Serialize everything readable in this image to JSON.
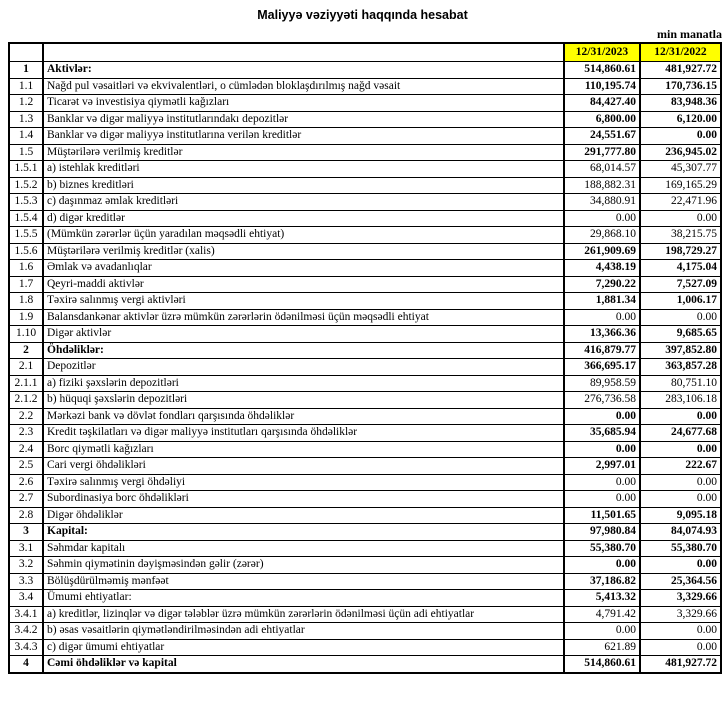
{
  "title": "Maliyyə vəziyyəti haqqında hesabat",
  "unit_note": "min manatla",
  "colors": {
    "header_bg": "#FFFF00",
    "border": "#000000",
    "text": "#000000"
  },
  "table": {
    "header": {
      "col_2023": "12/31/2023",
      "col_2022": "12/31/2022"
    },
    "rows": [
      {
        "num": "1",
        "label": "Aktivlər:",
        "v2023": "514,860.61",
        "v2022": "481,927.72",
        "style": "section"
      },
      {
        "num": "1.1",
        "label": "Nağd pul vəsaitləri və  ekvivalentləri, o cümlədən bloklaşdırılmış nağd vəsait",
        "v2023": "110,195.74",
        "v2022": "170,736.15",
        "style": "bold"
      },
      {
        "num": "1.2",
        "label": "Ticarət və investisiya qiymətli kağızları",
        "v2023": "84,427.40",
        "v2022": "83,948.36",
        "style": "bold"
      },
      {
        "num": "1.3",
        "label": "Banklar və digər maliyyə institutlarındakı depozitlər",
        "v2023": "6,800.00",
        "v2022": "6,120.00",
        "style": "bold"
      },
      {
        "num": "1.4",
        "label": "Banklar və digər maliyyə institutlarına verilən kreditlər",
        "v2023": "24,551.67",
        "v2022": "0.00",
        "style": "bold"
      },
      {
        "num": "1.5",
        "label": "Müştərilərə verilmiş kreditlər",
        "v2023": "291,777.80",
        "v2022": "236,945.02",
        "style": "bold"
      },
      {
        "num": "1.5.1",
        "label": "a) istehlak kreditləri",
        "v2023": "68,014.57",
        "v2022": "45,307.77",
        "style": "regular"
      },
      {
        "num": "1.5.2",
        "label": "b) biznes kreditləri",
        "v2023": "188,882.31",
        "v2022": "169,165.29",
        "style": "regular"
      },
      {
        "num": "1.5.3",
        "label": "c) daşınmaz əmlak kreditləri",
        "v2023": "34,880.91",
        "v2022": "22,471.96",
        "style": "regular"
      },
      {
        "num": "1.5.4",
        "label": "d) digər kreditlər",
        "v2023": "0.00",
        "v2022": "0.00",
        "style": "regular"
      },
      {
        "num": "1.5.5",
        "label": "(Mümkün zərərlər üçün yaradılan məqsədli ehtiyat)",
        "v2023": "29,868.10",
        "v2022": "38,215.75",
        "style": "regular"
      },
      {
        "num": "1.5.6",
        "label": "Müştərilərə verilmiş kreditlər (xalis)",
        "v2023": "261,909.69",
        "v2022": "198,729.27",
        "style": "bold"
      },
      {
        "num": "1.6",
        "label": "Əmlak və avadanlıqlar",
        "v2023": "4,438.19",
        "v2022": "4,175.04",
        "style": "bold"
      },
      {
        "num": "1.7",
        "label": "Qeyri-maddi aktivlər",
        "v2023": "7,290.22",
        "v2022": "7,527.09",
        "style": "bold"
      },
      {
        "num": "1.8",
        "label": "Təxirə salınmış vergi aktivləri",
        "v2023": "1,881.34",
        "v2022": "1,006.17",
        "style": "bold"
      },
      {
        "num": "1.9",
        "label": "Balansdankənar aktivlər üzrə mümkün zərərlərin ödənilməsi üçün məqsədli ehtiyat",
        "v2023": "0.00",
        "v2022": "0.00",
        "style": "regular"
      },
      {
        "num": "1.10",
        "label": "Digər aktivlər",
        "v2023": "13,366.36",
        "v2022": "9,685.65",
        "style": "bold"
      },
      {
        "num": "2",
        "label": "Öhdəliklər:",
        "v2023": "416,879.77",
        "v2022": "397,852.80",
        "style": "section"
      },
      {
        "num": "2.1",
        "label": "Depozitlər",
        "v2023": "366,695.17",
        "v2022": "363,857.28",
        "style": "bold"
      },
      {
        "num": "2.1.1",
        "label": "a) fiziki şəxslərin depozitləri",
        "v2023": "89,958.59",
        "v2022": "80,751.10",
        "style": "regular"
      },
      {
        "num": "2.1.2",
        "label": "b) hüquqi şəxslərin depozitləri",
        "v2023": "276,736.58",
        "v2022": "283,106.18",
        "style": "regular"
      },
      {
        "num": "2.2",
        "label": "Mərkəzi bank və dövlət fondları qarşısında öhdəliklər",
        "v2023": "0.00",
        "v2022": "0.00",
        "style": "bold"
      },
      {
        "num": "2.3",
        "label": "Kredit təşkilatları və digər maliyyə institutları qarşısında öhdəliklər",
        "v2023": "35,685.94",
        "v2022": "24,677.68",
        "style": "bold"
      },
      {
        "num": "2.4",
        "label": "Borc qiymətli kağızları",
        "v2023": "0.00",
        "v2022": "0.00",
        "style": "bold"
      },
      {
        "num": "2.5",
        "label": "Cari vergi öhdəlikləri",
        "v2023": "2,997.01",
        "v2022": "222.67",
        "style": "bold"
      },
      {
        "num": "2.6",
        "label": "Təxirə salınmış vergi öhdəliyi",
        "v2023": "0.00",
        "v2022": "0.00",
        "style": "regular"
      },
      {
        "num": "2.7",
        "label": "Subordinasiya borc öhdəlikləri",
        "v2023": "0.00",
        "v2022": "0.00",
        "style": "regular"
      },
      {
        "num": "2.8",
        "label": "Digər öhdəliklər",
        "v2023": "11,501.65",
        "v2022": "9,095.18",
        "style": "bold"
      },
      {
        "num": "3",
        "label": "Kapital:",
        "v2023": "97,980.84",
        "v2022": "84,074.93",
        "style": "section"
      },
      {
        "num": "3.1",
        "label": "Səhmdar kapitalı",
        "v2023": "55,380.70",
        "v2022": "55,380.70",
        "style": "bold"
      },
      {
        "num": "3.2",
        "label": "Səhmin qiymətinin dəyişməsindən gəlir (zərər)",
        "v2023": "0.00",
        "v2022": "0.00",
        "style": "bold"
      },
      {
        "num": "3.3",
        "label": "Bölüşdürülməmiş mənfəət",
        "v2023": "37,186.82",
        "v2022": "25,364.56",
        "style": "bold"
      },
      {
        "num": "3.4",
        "label": "Ümumi ehtiyatlar:",
        "v2023": "5,413.32",
        "v2022": "3,329.66",
        "style": "bold"
      },
      {
        "num": "3.4.1",
        "label": "a) kreditlər, lizinqlər və digər tələblər üzrə mümkün zərərlərin ödənilməsi üçün adi ehtiyatlar",
        "v2023": "4,791.42",
        "v2022": "3,329.66",
        "style": "regular"
      },
      {
        "num": "3.4.2",
        "label": "b) əsas vəsaitlərin qiymətləndirilməsindən adi ehtiyatlar",
        "v2023": "0.00",
        "v2022": "0.00",
        "style": "regular"
      },
      {
        "num": "3.4.3",
        "label": "c) digər ümumi ehtiyatlar",
        "v2023": "621.89",
        "v2022": "0.00",
        "style": "regular"
      },
      {
        "num": "4",
        "label": "Cəmi öhdəliklər və kapital",
        "v2023": "514,860.61",
        "v2022": "481,927.72",
        "style": "section"
      }
    ]
  }
}
